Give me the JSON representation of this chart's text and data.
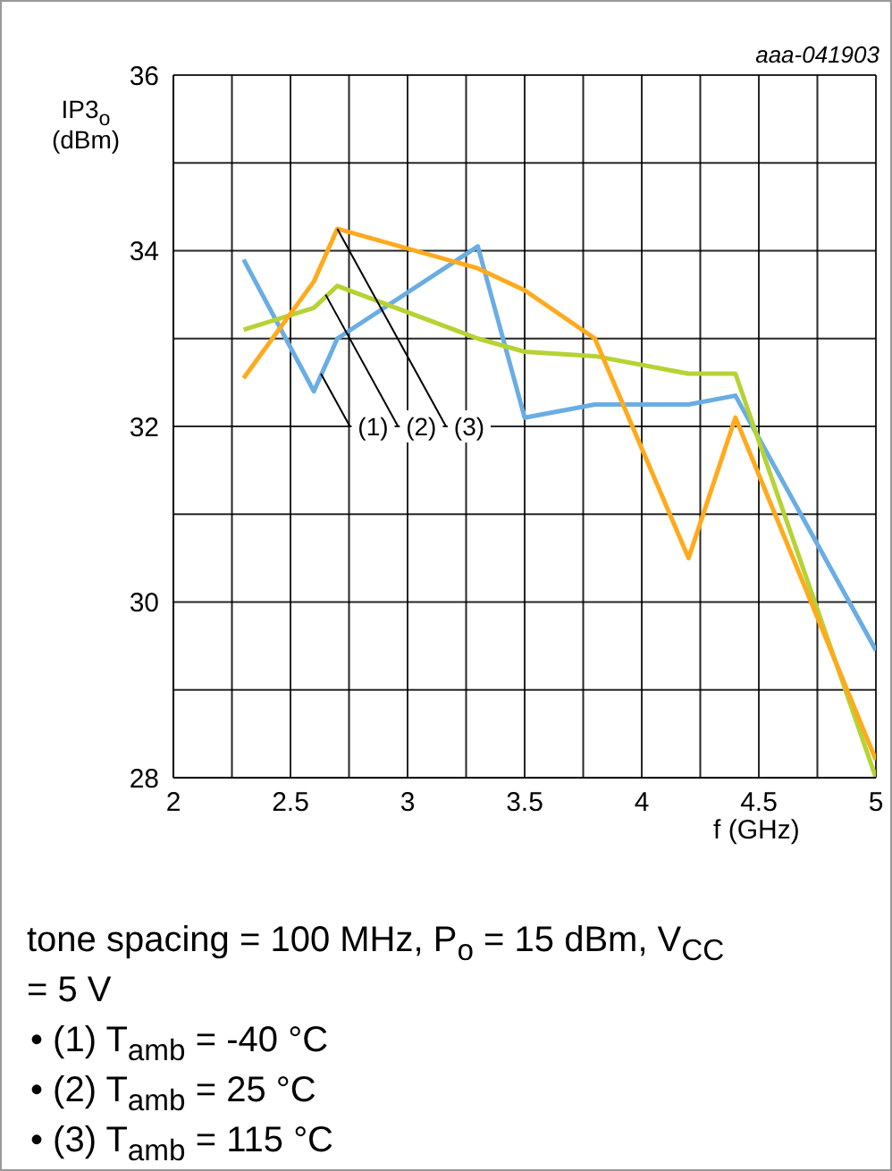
{
  "chart_data": {
    "type": "line",
    "xlabel": "f (GHz)",
    "ylabel": "IP3$_{o}$ (dBm)",
    "xlim": [
      2,
      5
    ],
    "ylim": [
      28,
      36
    ],
    "xticks": [
      2,
      {
        "value": 2.25,
        "label": null
      },
      2.5,
      {
        "value": 2.75,
        "label": null
      },
      3,
      {
        "value": 3.25,
        "label": null
      },
      3.5,
      {
        "value": 3.75,
        "label": null
      },
      4,
      {
        "value": 4.25,
        "label": null
      },
      4.5,
      {
        "value": 4.75,
        "label": null
      },
      5
    ],
    "yticks": [
      28,
      {
        "value": 29,
        "label": null
      },
      30,
      {
        "value": 31,
        "label": null
      },
      32,
      {
        "value": 33,
        "label": null
      },
      34,
      {
        "value": 35,
        "label": null
      },
      36
    ],
    "grid": true,
    "marker": "none",
    "line_style": "solid",
    "series": [
      {
        "color": "#6aade4",
        "x": [
          2.3,
          2.6,
          2.7,
          3.3,
          3.5,
          3.8,
          4.2,
          4.4,
          5
        ],
        "values": [
          33.9,
          32.4,
          33.0,
          34.05,
          32.1,
          32.25,
          32.25,
          32.35,
          29.45
        ]
      },
      {
        "color": "#b5d334",
        "x": [
          2.3,
          2.6,
          2.7,
          3.3,
          3.5,
          3.8,
          4.2,
          4.4,
          5
        ],
        "values": [
          33.1,
          33.35,
          33.6,
          33.0,
          32.85,
          32.8,
          32.6,
          32.6,
          28.0
        ]
      },
      {
        "color": "#ffaa1d",
        "x": [
          2.3,
          2.6,
          2.7,
          3.3,
          3.5,
          3.8,
          4.2,
          4.4,
          5
        ],
        "values": [
          32.55,
          33.65,
          34.25,
          33.8,
          33.55,
          33.0,
          30.5,
          32.1,
          28.2
        ]
      }
    ],
    "annotations": [
      "aaa-041903",
      {
        "text": "(1)",
        "x": 2.63,
        "y": 32.6
      },
      {
        "text": "(2)",
        "x": 2.65,
        "y": 33.5
      },
      {
        "text": "(3)",
        "x": 2.7,
        "y": 34.25
      },
      "tone spacing = 100 MHz, P$_{o}$ = 15 dBm, V$_{CC}$ = 5 V",
      "• (1) T$_{amb}$ = -40 °C",
      "• (2) T$_{amb}$ = 25 °C",
      "• (3) T$_{amb}$ = 115 °C"
    ]
  }
}
